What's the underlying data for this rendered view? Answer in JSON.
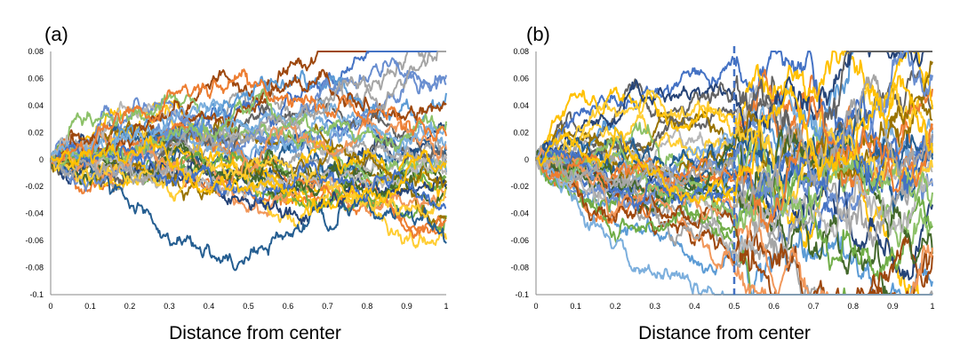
{
  "chart_data": [
    {
      "type": "line",
      "panel_label": "(a)",
      "xlabel": "Distance from center",
      "ylabel": "",
      "xlim": [
        0,
        1
      ],
      "ylim": [
        -0.1,
        0.08
      ],
      "x_ticks": [
        "0",
        "0.1",
        "0.2",
        "0.3",
        "0.4",
        "0.5",
        "0.6",
        "0.7",
        "0.8",
        "0.9",
        "1"
      ],
      "y_ticks": [
        "0.08",
        "0.06",
        "0.04",
        "0.02",
        "0",
        "-0.02",
        "-0.04",
        "-0.06",
        "-0.08",
        "-0.1"
      ],
      "grid": false,
      "series_count": 40,
      "noise_scale": 0.0021,
      "variance_jump_at": null,
      "endpoint_range": [
        -0.04,
        0.048
      ],
      "seed": 17
    },
    {
      "type": "line",
      "panel_label": "(b)",
      "xlabel": "Distance from center",
      "ylabel": "",
      "xlim": [
        0,
        1
      ],
      "ylim": [
        -0.1,
        0.08
      ],
      "x_ticks": [
        "0",
        "0.1",
        "0.2",
        "0.3",
        "0.4",
        "0.5",
        "0.6",
        "0.7",
        "0.8",
        "0.9",
        "1"
      ],
      "y_ticks": [
        "0.08",
        "0.06",
        "0.04",
        "0.02",
        "0",
        "-0.02",
        "-0.04",
        "-0.06",
        "-0.08",
        "-0.1"
      ],
      "grid": false,
      "series_count": 40,
      "noise_scale": 0.0021,
      "variance_jump_at": 0.5,
      "vertical_line_x": 0.5,
      "vertical_line_color": "#4472c4",
      "endpoint_range": [
        -0.08,
        0.065
      ],
      "seed": 91
    }
  ],
  "palette": [
    "#4472c4",
    "#ed7d31",
    "#a5a5a5",
    "#ffc000",
    "#5b9bd5",
    "#70ad47",
    "#264478",
    "#9e480e",
    "#636363",
    "#997300",
    "#255e91",
    "#43682b",
    "#698ed0",
    "#f1975a",
    "#b7b7b7",
    "#ffcd33",
    "#7cafdd",
    "#8cc168"
  ]
}
